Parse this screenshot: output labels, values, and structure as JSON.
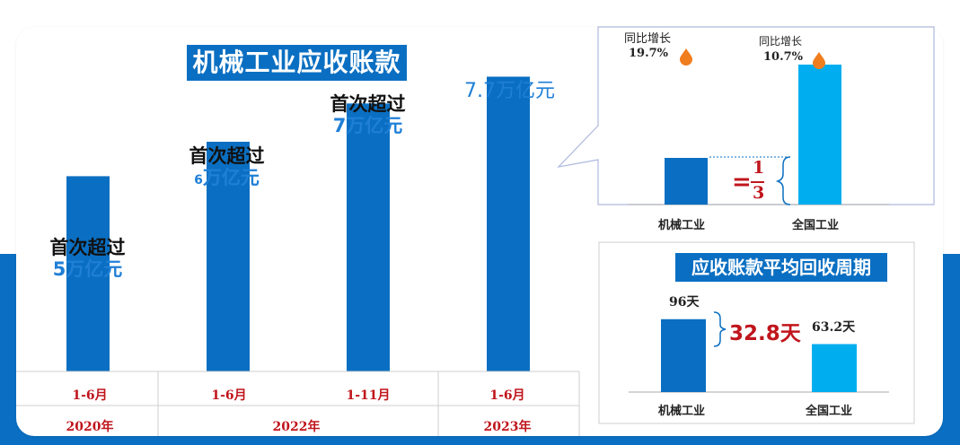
{
  "chart_data": [
    {
      "type": "bar",
      "title": "机械工业应收账款",
      "categories": [
        "1-6月",
        "1-6月",
        "1-11月",
        "1-6月"
      ],
      "periods": [
        {
          "label": "2020年",
          "span": [
            0,
            0
          ]
        },
        {
          "label": "2022年",
          "span": [
            1,
            2
          ]
        },
        {
          "label": "2023年",
          "span": [
            3,
            3
          ]
        }
      ],
      "values": [
        5.1,
        6.0,
        7.0,
        7.7
      ],
      "ylim": [
        0,
        9
      ],
      "annotations": [
        {
          "index": 0,
          "line1": "首次超过",
          "line2": "5万亿元"
        },
        {
          "index": 1,
          "line1": "首次超过",
          "line2_num": "6",
          "line2_unit": "万亿元"
        },
        {
          "index": 2,
          "line1": "首次超过",
          "line2": "7万亿元"
        },
        {
          "index": 3,
          "line1": "",
          "line2": "7.7万亿元"
        }
      ]
    },
    {
      "type": "bar",
      "categories": [
        "机械工业",
        "全国工业"
      ],
      "values": [
        1,
        3
      ],
      "growth_label": "同比增长",
      "growth": [
        "19.7%",
        "10.7%"
      ],
      "ratio_eq": "=",
      "ratio_num": "1",
      "ratio_den": "3",
      "colors": [
        "#0a6fc2",
        "#00aeef"
      ]
    },
    {
      "type": "bar",
      "title": "应收账款平均回收周期",
      "categories": [
        "机械工业",
        "全国工业"
      ],
      "values": [
        96,
        63.2
      ],
      "value_labels": [
        "96天",
        "63.2天"
      ],
      "difference": "32.8天",
      "ylim": [
        0,
        130
      ],
      "colors": [
        "#0a6fc2",
        "#00aeef"
      ]
    }
  ]
}
